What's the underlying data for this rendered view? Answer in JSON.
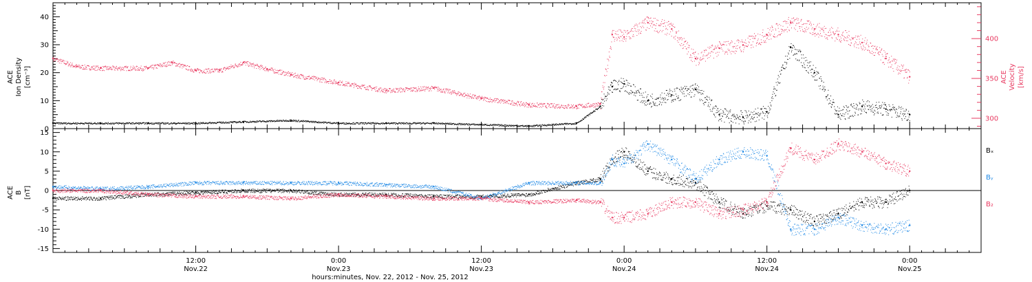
{
  "colors": {
    "density": "#000000",
    "velocity": "#e8385f",
    "bx": "#000000",
    "by": "#1e88e5",
    "bz": "#e8385f",
    "axis": "#000000"
  },
  "xaxis": {
    "title": "hours:minutes, Nov. 22, 2012 - Nov. 25, 2012",
    "range_hours": [
      0,
      78
    ],
    "ticks": [
      {
        "h": 12,
        "time": "12:00",
        "date": "Nov.22"
      },
      {
        "h": 24,
        "time": "0:00",
        "date": "Nov.23"
      },
      {
        "h": 36,
        "time": "12:00",
        "date": "Nov.23"
      },
      {
        "h": 48,
        "time": "0:00",
        "date": "Nov.24"
      },
      {
        "h": 60,
        "time": "12:00",
        "date": "Nov.24"
      },
      {
        "h": 72,
        "time": "0:00",
        "date": "Nov.25"
      }
    ]
  },
  "chart_data": [
    {
      "type": "scatter",
      "panel": "top",
      "ylabel_left": [
        "ACE",
        "Ion Density",
        "[cm⁻³]"
      ],
      "ylabel_right": [
        "ACE",
        "Velocity",
        "[km/s]"
      ],
      "ylim_left": [
        0,
        45
      ],
      "yticks_left": [
        0,
        10,
        20,
        30,
        40
      ],
      "ylim_right": [
        287,
        445
      ],
      "yticks_right": [
        300,
        350,
        400
      ],
      "series": [
        {
          "key": "density",
          "axis": "left",
          "x": [
            0,
            4,
            8,
            12,
            16,
            20,
            24,
            28,
            32,
            36,
            40,
            44,
            46,
            47,
            48,
            50,
            52,
            54,
            56,
            58,
            60,
            62,
            64,
            66,
            68,
            70,
            72
          ],
          "y": [
            2,
            2,
            2,
            2,
            2.5,
            3,
            2,
            2,
            2,
            1.5,
            1,
            2,
            8,
            15,
            16,
            10,
            12,
            14,
            5,
            4,
            6,
            29,
            20,
            5,
            8,
            7,
            5
          ]
        },
        {
          "key": "velocity",
          "axis": "right",
          "x": [
            0,
            2,
            4,
            8,
            10,
            12,
            14,
            16,
            18,
            20,
            24,
            28,
            32,
            36,
            40,
            44,
            46,
            47,
            48,
            50,
            52,
            54,
            56,
            58,
            60,
            62,
            64,
            66,
            68,
            70,
            72
          ],
          "y": [
            375,
            365,
            363,
            363,
            370,
            360,
            360,
            370,
            362,
            355,
            345,
            335,
            338,
            325,
            317,
            315,
            318,
            405,
            402,
            420,
            412,
            375,
            388,
            392,
            405,
            420,
            412,
            405,
            395,
            375,
            352
          ]
        }
      ]
    },
    {
      "type": "scatter",
      "panel": "bottom",
      "ylabel_left": [
        "ACE",
        "B",
        "[nT]"
      ],
      "ylim": [
        -16,
        16
      ],
      "yticks": [
        -15,
        -10,
        -5,
        0,
        5,
        10,
        15
      ],
      "legend": [
        "Bₓ",
        "Bᵧ",
        "B₂"
      ],
      "series": [
        {
          "key": "bx",
          "x": [
            0,
            4,
            8,
            12,
            16,
            20,
            24,
            28,
            32,
            36,
            40,
            44,
            46,
            47,
            48,
            50,
            52,
            54,
            56,
            58,
            60,
            62,
            64,
            66,
            68,
            70,
            72
          ],
          "y": [
            -2,
            -2,
            -1,
            -0.5,
            0,
            0,
            -1,
            -1,
            -1.5,
            -1.5,
            -1,
            2,
            3,
            8,
            10,
            5,
            3,
            2,
            -3,
            -6,
            -4,
            -5,
            -8,
            -6,
            -3,
            -3,
            0
          ]
        },
        {
          "key": "by",
          "x": [
            0,
            4,
            8,
            12,
            16,
            20,
            24,
            28,
            32,
            36,
            40,
            44,
            46,
            47,
            48,
            50,
            52,
            54,
            56,
            58,
            60,
            62,
            64,
            66,
            68,
            70,
            72
          ],
          "y": [
            1,
            0.5,
            1,
            2,
            2,
            2,
            2,
            1.5,
            1,
            -2,
            2,
            2,
            2,
            8,
            7,
            12,
            8,
            3,
            8,
            10,
            9,
            -10,
            -10,
            -7,
            -9,
            -10,
            -9
          ]
        },
        {
          "key": "bz",
          "x": [
            0,
            4,
            8,
            12,
            16,
            20,
            24,
            28,
            32,
            36,
            40,
            44,
            46,
            47,
            48,
            50,
            52,
            54,
            56,
            58,
            60,
            62,
            64,
            66,
            68,
            70,
            72
          ],
          "y": [
            0,
            0,
            -1,
            -1.5,
            -1.5,
            -2,
            -1,
            -1.5,
            -2,
            -2,
            -3,
            -2.5,
            -3,
            -7,
            -7,
            -6,
            -3,
            -3,
            -6,
            -5,
            -3,
            11,
            8,
            12,
            10,
            7,
            5
          ]
        }
      ]
    }
  ]
}
